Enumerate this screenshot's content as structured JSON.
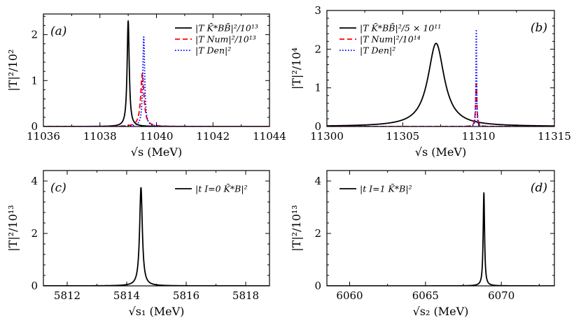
{
  "figure_title": "",
  "chart_data": [
    {
      "type": "line",
      "panel_label": "(a)",
      "title": "",
      "xlabel": "√s (MeV)",
      "ylabel": "|T|²/10²",
      "xlim": [
        11036,
        11044
      ],
      "ylim": [
        0,
        2.45
      ],
      "xticks": [
        11036,
        11038,
        11040,
        11042,
        11044
      ],
      "xtick_labels": [
        "11036",
        "11038",
        "11040",
        "11042",
        "11044"
      ],
      "yticks": [
        0,
        1,
        2
      ],
      "ytick_labels": [
        "0",
        "1",
        "2"
      ],
      "legend_position": "top-right",
      "series": [
        {
          "name": "|T_{K̄*BB̄}|²/10¹³",
          "legend_label": "|T K̄*BB̄|²/10¹³",
          "color": "#000000",
          "style": "solid",
          "peak": {
            "x0": 11039.0,
            "gamma": 0.045,
            "height": 2.3
          }
        },
        {
          "name": "|T_{Num}|²/10¹³",
          "legend_label": "|T Num|²/10¹³",
          "color": "#ff0000",
          "style": "dashed",
          "peak": {
            "x0": 11039.5,
            "gamma": 0.07,
            "height": 1.15
          }
        },
        {
          "name": "|T_{Den}|²",
          "legend_label": "|T Den|²",
          "color": "#0000ff",
          "style": "dotted",
          "peak": {
            "x0": 11039.55,
            "gamma": 0.04,
            "height": 1.95
          }
        }
      ]
    },
    {
      "type": "line",
      "panel_label": "(b)",
      "title": "",
      "xlabel": "√s (MeV)",
      "ylabel": "|T|²/10⁴",
      "xlim": [
        11300,
        11315
      ],
      "ylim": [
        0,
        3
      ],
      "xticks": [
        11300,
        11305,
        11310,
        11315
      ],
      "xtick_labels": [
        "11300",
        "11305",
        "11310",
        "11315"
      ],
      "yticks": [
        0,
        1,
        2,
        3
      ],
      "ytick_labels": [
        "0",
        "1",
        "2",
        "3"
      ],
      "legend_position": "top-left",
      "series": [
        {
          "name": "|T_{K̄*BB̄}|²/5 × 10¹¹",
          "legend_label": "|T K̄*BB̄|²/5 × 10¹¹",
          "color": "#000000",
          "style": "solid",
          "peak": {
            "x0": 11307.2,
            "gamma": 0.65,
            "height": 2.15
          }
        },
        {
          "name": "|T_{Num}|²/10¹⁴",
          "legend_label": "|T Num|²/10¹⁴",
          "color": "#ff0000",
          "style": "dashed",
          "peak": {
            "x0": 11309.85,
            "gamma": 0.05,
            "height": 1.1
          }
        },
        {
          "name": "|T_{Den}|²",
          "legend_label": "|T Den|²",
          "color": "#0000ff",
          "style": "dotted",
          "peak": {
            "x0": 11309.85,
            "gamma": 0.025,
            "height": 2.55
          }
        }
      ]
    },
    {
      "type": "line",
      "panel_label": "(c)",
      "title": "",
      "xlabel": "√s₁ (MeV)",
      "ylabel": "|T|²/10¹³",
      "xlim": [
        5811.2,
        5818.8
      ],
      "ylim": [
        0,
        4.4
      ],
      "xticks": [
        5812,
        5814,
        5816,
        5818
      ],
      "xtick_labels": [
        "5812",
        "5814",
        "5816",
        "5818"
      ],
      "yticks": [
        0,
        2,
        4
      ],
      "ytick_labels": [
        "0",
        "2",
        "4"
      ],
      "legend_position": "top-right",
      "series": [
        {
          "name": "|t^{I=0}_{K̄*B}|²",
          "legend_label": "|t I=0 K̄*B|²",
          "color": "#000000",
          "style": "solid",
          "peak": {
            "x0": 5814.48,
            "gamma": 0.055,
            "height": 3.75
          }
        }
      ]
    },
    {
      "type": "line",
      "panel_label": "(d)",
      "title": "",
      "xlabel": "√s₂ (MeV)",
      "ylabel": "|T|²/10¹³",
      "xlim": [
        6058.5,
        6073.5
      ],
      "ylim": [
        0,
        4.4
      ],
      "xticks": [
        6060,
        6065,
        6070
      ],
      "xtick_labels": [
        "6060",
        "6065",
        "6070"
      ],
      "yticks": [
        0,
        2,
        4
      ],
      "ytick_labels": [
        "0",
        "2",
        "4"
      ],
      "legend_position": "top-left",
      "series": [
        {
          "name": "|t^{I=1}_{K̄*B}|²",
          "legend_label": "|t I=1 K̄*B|²",
          "color": "#000000",
          "style": "solid",
          "peak": {
            "x0": 6068.85,
            "gamma": 0.055,
            "height": 3.55
          }
        }
      ]
    }
  ]
}
